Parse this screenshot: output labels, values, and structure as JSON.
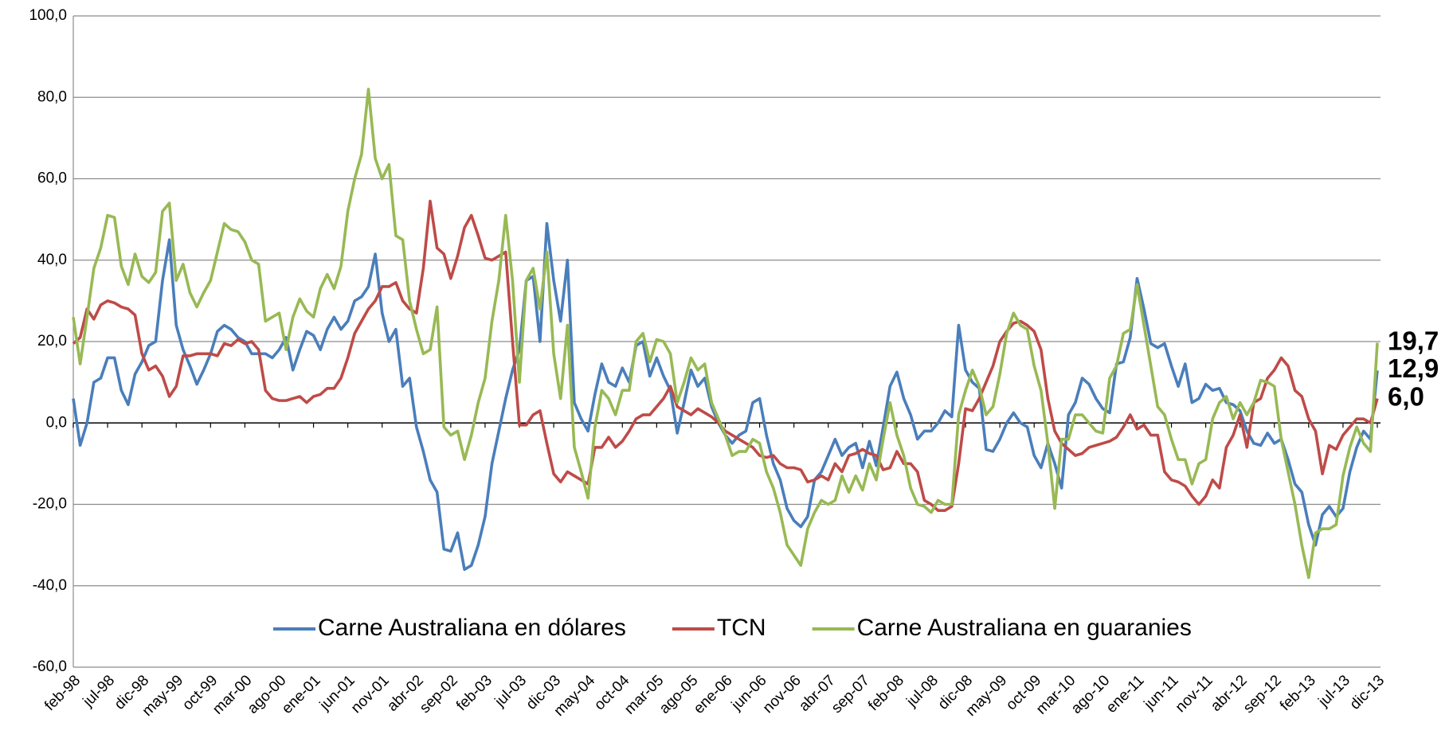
{
  "chart_data": {
    "type": "line",
    "categories": [
      "feb-98",
      null,
      null,
      null,
      null,
      "jul-98",
      null,
      null,
      null,
      null,
      "dic-98",
      null,
      null,
      null,
      null,
      "may-99",
      null,
      null,
      null,
      null,
      "oct-99",
      null,
      null,
      null,
      null,
      "mar-00",
      null,
      null,
      null,
      null,
      "ago-00",
      null,
      null,
      null,
      null,
      "ene-01",
      null,
      null,
      null,
      null,
      "jun-01",
      null,
      null,
      null,
      null,
      "nov-01",
      null,
      null,
      null,
      null,
      "abr-02",
      null,
      null,
      null,
      null,
      "sep-02",
      null,
      null,
      null,
      null,
      "feb-03",
      null,
      null,
      null,
      null,
      "jul-03",
      null,
      null,
      null,
      null,
      "dic-03",
      null,
      null,
      null,
      null,
      "may-04",
      null,
      null,
      null,
      null,
      "oct-04",
      null,
      null,
      null,
      null,
      "mar-05",
      null,
      null,
      null,
      null,
      "ago-05",
      null,
      null,
      null,
      null,
      "ene-06",
      null,
      null,
      null,
      null,
      "jun-06",
      null,
      null,
      null,
      null,
      "nov-06",
      null,
      null,
      null,
      null,
      "abr-07",
      null,
      null,
      null,
      null,
      "sep-07",
      null,
      null,
      null,
      null,
      "feb-08",
      null,
      null,
      null,
      null,
      "jul-08",
      null,
      null,
      null,
      null,
      "dic-08",
      null,
      null,
      null,
      null,
      "may-09",
      null,
      null,
      null,
      null,
      "oct-09",
      null,
      null,
      null,
      null,
      "mar-10",
      null,
      null,
      null,
      null,
      "ago-10",
      null,
      null,
      null,
      null,
      "ene-11",
      null,
      null,
      null,
      null,
      "jun-11",
      null,
      null,
      null,
      null,
      "nov-11",
      null,
      null,
      null,
      null,
      "abr-12",
      null,
      null,
      null,
      null,
      "sep-12",
      null,
      null,
      null,
      null,
      "feb-13",
      null,
      null,
      null,
      null,
      "jul-13",
      null,
      null,
      null,
      null,
      "dic-13"
    ],
    "series": [
      {
        "name": "Carne Australiana en dólares",
        "color": "#4a7ebb",
        "end_label": "12,9",
        "values": [
          6,
          -5.5,
          0,
          10,
          11,
          16,
          16,
          8,
          4.5,
          12,
          15,
          19,
          20,
          35,
          45,
          24,
          18,
          14,
          9.5,
          13,
          17,
          22.5,
          24,
          23,
          21,
          20,
          17,
          17,
          17,
          16,
          18,
          21,
          13,
          18,
          22.5,
          21.5,
          18,
          23,
          26,
          23,
          25,
          30,
          31,
          33.5,
          41.5,
          27,
          20,
          23,
          9,
          11,
          -1,
          -7,
          -14,
          -17,
          -31,
          -31.5,
          -27,
          -36,
          -35,
          -30,
          -23,
          -10,
          -2,
          6,
          13,
          18,
          35,
          36,
          20,
          49,
          35,
          25,
          40,
          5,
          1,
          -2,
          7,
          14.5,
          10,
          9,
          13.5,
          10,
          19,
          20,
          11.5,
          16,
          11.5,
          8,
          -2.5,
          5,
          13,
          9,
          11,
          4,
          0,
          -3,
          -5,
          -3,
          -2,
          5,
          6,
          -3,
          -10,
          -14,
          -21,
          -24,
          -25.5,
          -23,
          -14,
          -12,
          -8,
          -4,
          -8,
          -6,
          -5,
          -11,
          -4.5,
          -10.5,
          -1,
          9,
          12.5,
          6,
          2,
          -4,
          -2,
          -2,
          0,
          3,
          1.5,
          24,
          13,
          10,
          8.5,
          -6.5,
          -7,
          -4,
          0,
          2.5,
          0,
          -1,
          -8,
          -11,
          -5,
          -10,
          -16,
          2,
          5,
          11,
          9.5,
          6,
          3.5,
          2.5,
          14.5,
          15,
          21,
          35.5,
          28,
          19.5,
          18.5,
          19.5,
          14,
          9,
          14.5,
          5,
          6,
          9.5,
          8,
          8.5,
          5,
          4.5,
          3,
          -2,
          -5,
          -5.5,
          -2.5,
          -5,
          -4,
          -9,
          -15,
          -17,
          -25,
          -30,
          -22.5,
          -20.5,
          -23,
          -21,
          -12,
          -6,
          -2,
          -4,
          12.9
        ]
      },
      {
        "name": "TCN",
        "color": "#be4b48",
        "end_label": "6,0",
        "values": [
          19.5,
          21,
          28,
          25.5,
          29,
          30,
          29.5,
          28.5,
          28,
          26.5,
          17,
          13,
          14,
          11.5,
          6.5,
          9,
          16.5,
          16.5,
          17,
          17,
          17,
          16.5,
          19.5,
          19,
          20.5,
          19.5,
          20,
          18,
          8,
          6,
          5.5,
          5.5,
          6,
          6.5,
          5,
          6.5,
          7,
          8.5,
          8.5,
          11,
          16,
          22,
          25,
          28,
          30,
          33.5,
          33.5,
          34.5,
          30,
          28,
          27,
          38,
          54.5,
          43,
          41.5,
          35.5,
          41,
          48,
          51,
          46,
          40.5,
          40,
          41,
          42,
          20,
          -0.5,
          -0.5,
          2,
          3,
          -5,
          -12.5,
          -14.5,
          -12,
          -13,
          -14,
          -15,
          -6,
          -6,
          -3.5,
          -6,
          -4.5,
          -2,
          1,
          2,
          2,
          4,
          6,
          9,
          4,
          3,
          2,
          3.5,
          2.5,
          1.5,
          0,
          -2,
          -3,
          -4,
          -5,
          -6,
          -8,
          -8.5,
          -8,
          -10,
          -11,
          -11,
          -11.5,
          -14.5,
          -14,
          -13,
          -14,
          -10,
          -12,
          -8,
          -7.5,
          -6.5,
          -7.5,
          -8,
          -11.5,
          -11,
          -7,
          -10,
          -10,
          -12,
          -19,
          -20,
          -21.5,
          -21.5,
          -20.5,
          -10,
          3.5,
          3,
          6,
          10,
          14,
          20,
          22.5,
          24.5,
          25,
          24,
          22.5,
          18,
          6,
          -2,
          -5,
          -6.5,
          -8,
          -7.5,
          -6,
          -5.5,
          -5,
          -4.5,
          -3.5,
          -1,
          2,
          -1.5,
          -0.5,
          -3,
          -3,
          -12,
          -14,
          -14.5,
          -15.5,
          -18,
          -20,
          -18,
          -14,
          -16,
          -6,
          -3,
          2,
          -6,
          5,
          6,
          11,
          13,
          16,
          14,
          8,
          6.5,
          1,
          -2,
          -12.5,
          -5.5,
          -6.5,
          -3,
          -1,
          1,
          1,
          0,
          6
        ]
      },
      {
        "name": "Carne Australiana en guaranies",
        "color": "#98b954",
        "end_label": "19,7",
        "values": [
          26,
          14.5,
          26,
          38,
          43,
          51,
          50.5,
          38.5,
          34,
          41.5,
          36,
          34.5,
          37,
          52,
          54,
          35,
          39,
          32,
          28.5,
          32,
          35,
          42,
          49,
          47.5,
          47,
          44.5,
          40,
          39,
          25,
          26,
          27,
          18,
          26,
          30.5,
          27.5,
          26,
          33,
          36.5,
          33,
          38.5,
          52,
          60,
          66,
          82,
          65,
          60,
          63.5,
          46,
          45,
          30,
          23,
          17,
          18,
          28.5,
          -1,
          -3,
          -2,
          -9,
          -3,
          5,
          11,
          25,
          35,
          51,
          35,
          10,
          35,
          38,
          28,
          42,
          17,
          6,
          24,
          -6,
          -12,
          -18.5,
          -1,
          8,
          6,
          2,
          8,
          8,
          20,
          22,
          15,
          20.5,
          20,
          17,
          5,
          10,
          16,
          13,
          14.5,
          5,
          1,
          -3,
          -8,
          -7,
          -7,
          -4,
          -5,
          -12,
          -16,
          -22,
          -30,
          -32.5,
          -35,
          -26,
          -22,
          -19,
          -20,
          -19,
          -13,
          -17,
          -13,
          -16.5,
          -10,
          -14,
          -4,
          5,
          -3,
          -8,
          -16,
          -20,
          -20.5,
          -22,
          -19,
          -20,
          -20,
          2,
          8,
          13,
          9,
          2,
          4,
          12,
          22,
          27,
          24,
          23,
          14,
          8,
          -5,
          -21,
          -4,
          -4,
          2,
          2,
          0,
          -2,
          -2.5,
          11,
          14,
          22,
          23,
          34,
          24,
          14,
          4,
          2,
          -4,
          -9,
          -9,
          -15,
          -10,
          -9,
          1,
          5,
          6.5,
          1,
          5,
          2,
          5,
          10.5,
          10,
          9,
          -4,
          -12,
          -20,
          -30,
          -38,
          -27,
          -26,
          -26,
          -25,
          -13,
          -6,
          -1,
          -5,
          -7,
          19.7
        ]
      }
    ],
    "ylim": [
      -60,
      100
    ],
    "yticks": [
      {
        "value": -60,
        "label": "-60,0"
      },
      {
        "value": -40,
        "label": "-40,0"
      },
      {
        "value": -20,
        "label": "-20,0"
      },
      {
        "value": 0,
        "label": "0,0"
      },
      {
        "value": 20,
        "label": "20,0"
      },
      {
        "value": 40,
        "label": "40,0"
      },
      {
        "value": 60,
        "label": "60,0"
      },
      {
        "value": 80,
        "label": "80,0"
      },
      {
        "value": 100,
        "label": "100,0"
      }
    ],
    "grid": true,
    "legend": "bottom"
  }
}
